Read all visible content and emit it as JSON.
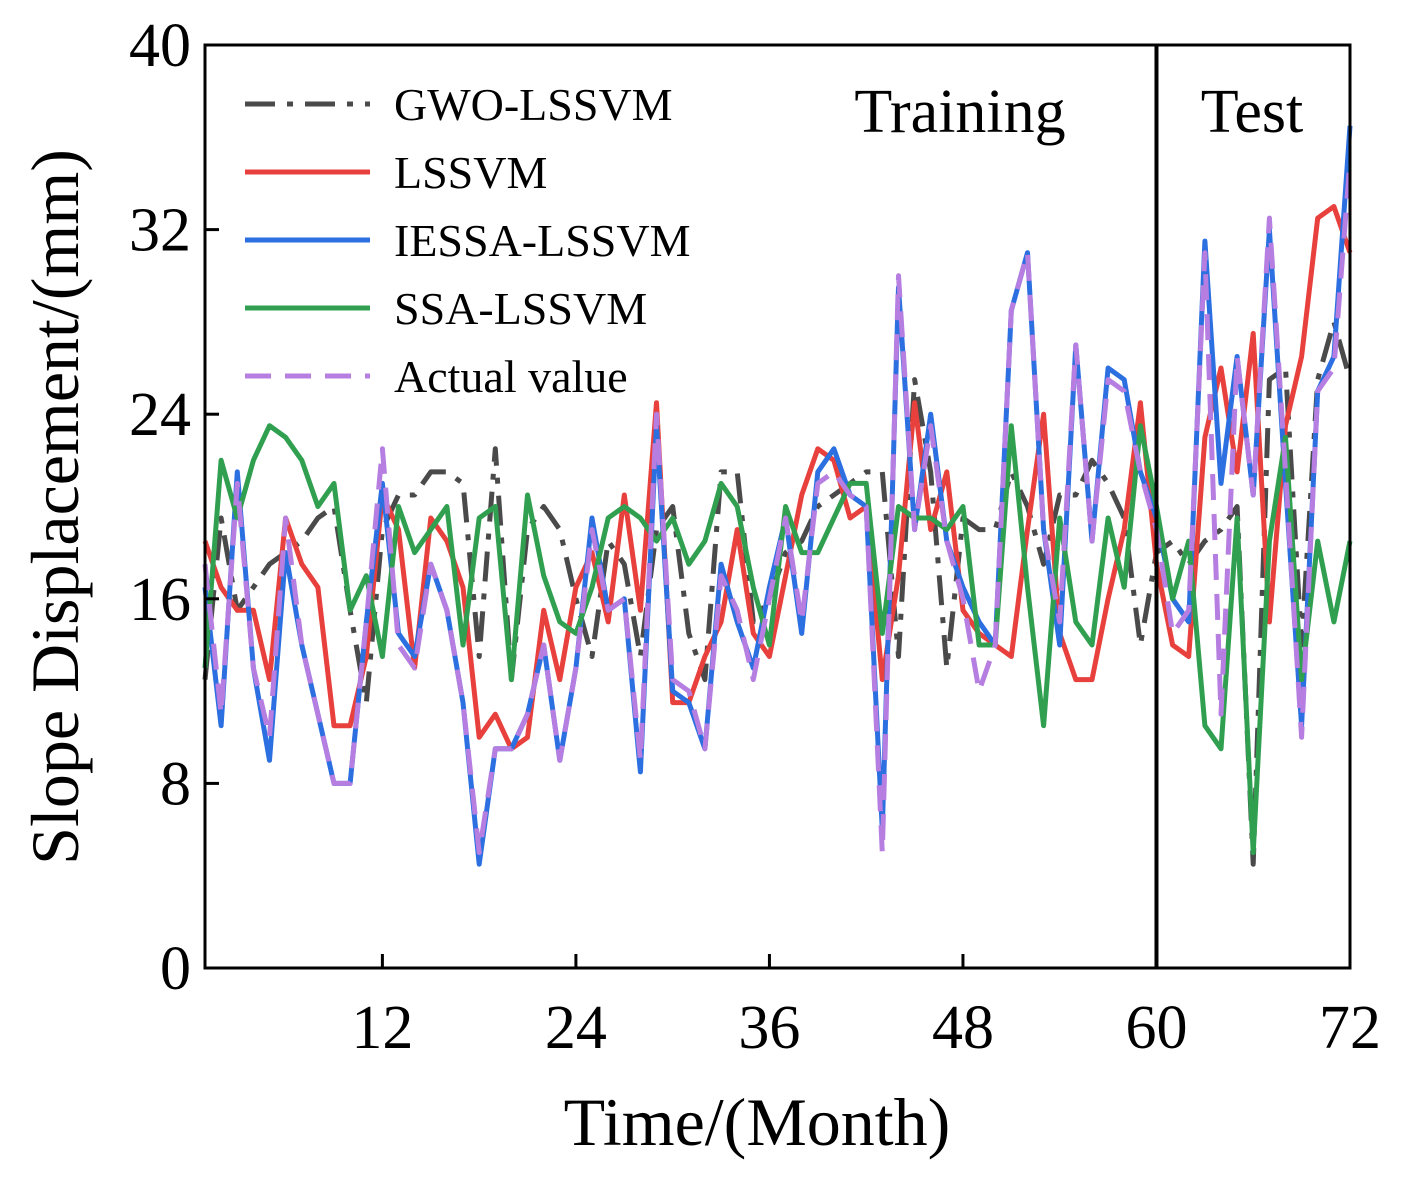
{
  "chart_data": {
    "type": "line",
    "xlabel": "Time/(Month)",
    "ylabel": "Slope Displacement/(mm)",
    "xlim": [
      1,
      72
    ],
    "ylim": [
      0,
      40
    ],
    "x_ticks": [
      12,
      24,
      36,
      48,
      60,
      72
    ],
    "y_ticks": [
      0,
      8,
      16,
      24,
      32,
      40
    ],
    "divider_x": 60,
    "regions": {
      "training": "Training",
      "test": "Test"
    },
    "legend_position": "top-left",
    "x": [
      1,
      2,
      3,
      4,
      5,
      6,
      7,
      8,
      9,
      10,
      11,
      12,
      13,
      14,
      15,
      16,
      17,
      18,
      19,
      20,
      21,
      22,
      23,
      24,
      25,
      26,
      27,
      28,
      29,
      30,
      31,
      32,
      33,
      34,
      35,
      36,
      37,
      38,
      39,
      40,
      41,
      42,
      43,
      44,
      45,
      46,
      47,
      48,
      49,
      50,
      51,
      52,
      53,
      54,
      55,
      56,
      57,
      58,
      59,
      60,
      61,
      62,
      63,
      64,
      65,
      66,
      67,
      68,
      69,
      70,
      71,
      72
    ],
    "series": [
      {
        "name": "GWO-LSSVM",
        "color": "#4a4a4a",
        "style": "dashdot",
        "values": [
          12.5,
          19.5,
          15.5,
          16.5,
          17.5,
          18.0,
          18.5,
          19.5,
          20.0,
          15.5,
          11.5,
          19.0,
          20.5,
          20.5,
          21.5,
          21.5,
          21.0,
          13.5,
          22.5,
          12.5,
          19.0,
          20.0,
          19.0,
          16.0,
          13.5,
          18.5,
          17.5,
          13.5,
          19.0,
          20.0,
          14.5,
          12.5,
          21.5,
          21.5,
          15.0,
          16.0,
          18.0,
          18.5,
          20.0,
          20.5,
          21.0,
          21.5,
          21.5,
          13.5,
          25.5,
          21.5,
          13.0,
          19.5,
          19.0,
          19.0,
          21.5,
          20.0,
          17.5,
          20.5,
          20.5,
          22.0,
          21.0,
          19.5,
          14.0,
          18.0,
          18.5,
          17.5,
          18.5,
          19.0,
          20.0,
          4.5,
          25.5,
          26.0,
          14.0,
          25.5,
          28.0,
          25.5
        ]
      },
      {
        "name": "LSSVM",
        "color": "#e8403c",
        "style": "solid",
        "values": [
          18.5,
          16.5,
          15.5,
          15.5,
          12.5,
          19.5,
          17.5,
          16.5,
          10.5,
          10.5,
          13.5,
          20.5,
          19.0,
          13.0,
          19.5,
          18.5,
          16.5,
          10.0,
          11.0,
          9.5,
          10.0,
          15.5,
          12.5,
          16.5,
          18.0,
          15.0,
          20.5,
          15.5,
          24.5,
          11.5,
          11.5,
          13.5,
          15.0,
          19.0,
          14.5,
          13.5,
          17.0,
          20.5,
          22.5,
          22.0,
          19.5,
          20.0,
          12.5,
          17.0,
          24.5,
          19.0,
          21.5,
          15.5,
          14.5,
          14.0,
          13.5,
          19.0,
          24.0,
          14.5,
          12.5,
          12.5,
          16.0,
          19.0,
          24.5,
          17.5,
          14.0,
          13.5,
          23.0,
          26.0,
          21.5,
          27.5,
          15.0,
          23.5,
          26.5,
          32.5,
          33.0,
          31.0
        ]
      },
      {
        "name": "IESSA-LSSVM",
        "color": "#2b6fe0",
        "style": "solid",
        "values": [
          16.5,
          10.5,
          21.5,
          13.0,
          9.0,
          18.0,
          14.0,
          11.0,
          8.0,
          8.0,
          15.0,
          21.0,
          14.5,
          13.5,
          17.5,
          15.5,
          11.5,
          4.5,
          9.5,
          9.5,
          11.0,
          14.0,
          9.0,
          13.0,
          19.5,
          15.5,
          16.0,
          8.5,
          23.5,
          12.0,
          11.5,
          9.5,
          17.5,
          15.0,
          13.0,
          16.5,
          19.5,
          14.5,
          21.5,
          22.5,
          20.5,
          20.0,
          6.0,
          29.5,
          19.0,
          24.0,
          18.5,
          16.5,
          15.0,
          14.0,
          28.5,
          31.0,
          19.0,
          14.0,
          27.0,
          18.5,
          26.0,
          25.5,
          21.5,
          19.5,
          16.0,
          15.0,
          31.5,
          21.0,
          26.5,
          20.5,
          32.0,
          21.0,
          10.5,
          25.0,
          26.5,
          36.5
        ]
      },
      {
        "name": "SSA-LSSVM",
        "color": "#30a050",
        "style": "solid",
        "values": [
          13.0,
          22.0,
          19.5,
          22.0,
          23.5,
          23.0,
          22.0,
          20.0,
          21.0,
          15.5,
          17.0,
          13.5,
          20.0,
          18.0,
          19.0,
          20.0,
          14.0,
          19.5,
          20.0,
          12.5,
          20.5,
          17.0,
          15.0,
          14.5,
          16.5,
          19.5,
          20.0,
          19.5,
          18.5,
          19.5,
          17.5,
          18.5,
          21.0,
          20.0,
          16.5,
          14.0,
          20.0,
          18.0,
          18.0,
          19.5,
          21.0,
          21.0,
          14.5,
          20.0,
          19.5,
          19.5,
          19.0,
          20.0,
          14.0,
          14.0,
          23.5,
          16.5,
          10.5,
          19.5,
          15.0,
          14.0,
          19.5,
          16.5,
          23.5,
          20.0,
          16.0,
          18.5,
          10.5,
          9.5,
          19.5,
          5.0,
          18.5,
          23.0,
          12.5,
          18.5,
          15.0,
          18.5
        ]
      },
      {
        "name": "Actual value",
        "color": "#b57ee0",
        "style": "dash",
        "values": [
          17.5,
          11.0,
          21.0,
          13.0,
          10.0,
          19.5,
          14.0,
          11.0,
          8.0,
          8.0,
          15.0,
          22.5,
          14.0,
          13.0,
          17.5,
          15.5,
          11.5,
          5.0,
          9.5,
          9.5,
          11.0,
          14.0,
          9.0,
          13.0,
          19.0,
          15.5,
          16.0,
          9.0,
          24.0,
          12.5,
          12.0,
          9.5,
          17.0,
          15.5,
          12.5,
          16.0,
          19.5,
          15.0,
          21.0,
          21.5,
          20.5,
          20.0,
          5.0,
          30.0,
          19.0,
          23.5,
          18.5,
          16.0,
          12.0,
          14.0,
          28.5,
          31.0,
          19.0,
          15.0,
          27.0,
          18.5,
          25.5,
          25.0,
          21.5,
          19.0,
          14.5,
          15.5,
          31.0,
          11.0,
          26.5,
          20.5,
          32.5,
          21.5,
          10.0,
          25.0,
          26.0,
          35.0
        ]
      }
    ]
  }
}
